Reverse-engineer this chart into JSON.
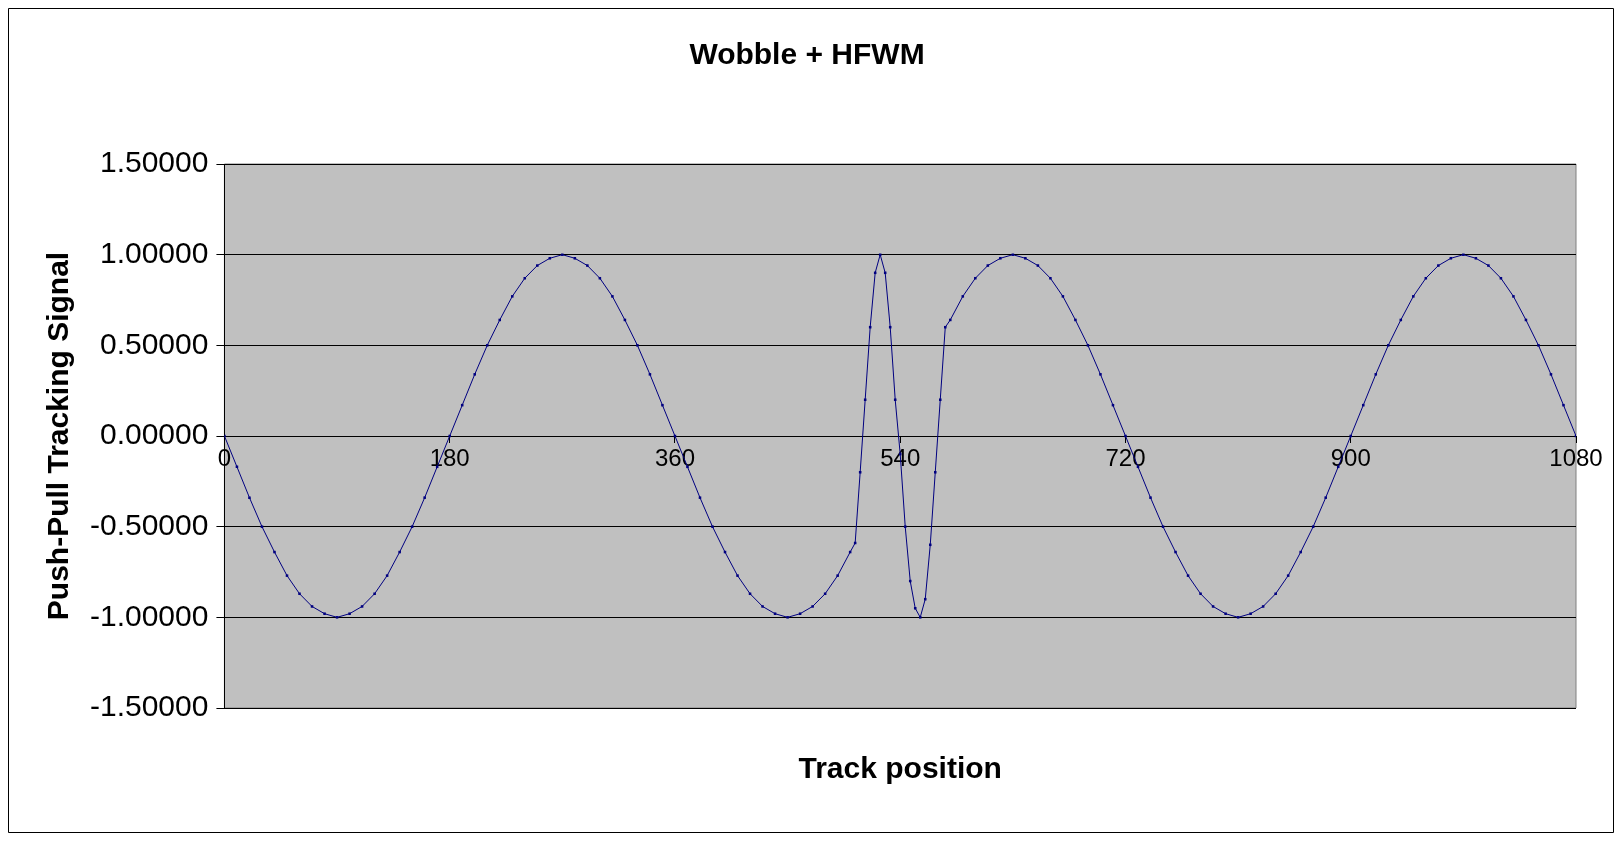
{
  "chart_data": {
    "type": "line",
    "title": "Wobble + HFWM",
    "xlabel": "Track position",
    "ylabel": "Push-Pull Tracking Signal",
    "x": [
      0,
      10,
      20,
      30,
      40,
      50,
      60,
      70,
      80,
      90,
      100,
      110,
      120,
      130,
      140,
      150,
      160,
      170,
      180,
      190,
      200,
      210,
      220,
      230,
      240,
      250,
      260,
      270,
      280,
      290,
      300,
      310,
      320,
      330,
      340,
      350,
      360,
      370,
      380,
      390,
      400,
      410,
      420,
      430,
      440,
      450,
      460,
      470,
      480,
      490,
      500,
      504,
      508,
      512,
      516,
      520,
      524,
      528,
      532,
      536,
      540,
      544,
      548,
      552,
      556,
      560,
      564,
      568,
      572,
      576,
      580,
      590,
      600,
      610,
      620,
      630,
      640,
      650,
      660,
      670,
      680,
      690,
      700,
      710,
      720,
      730,
      740,
      750,
      760,
      770,
      780,
      790,
      800,
      810,
      820,
      830,
      840,
      850,
      860,
      870,
      880,
      890,
      900,
      910,
      920,
      930,
      940,
      950,
      960,
      970,
      980,
      990,
      1000,
      1010,
      1020,
      1030,
      1040,
      1050,
      1060,
      1070,
      1080
    ],
    "series": [
      {
        "color": "#000080",
        "values": [
          0,
          -0.17,
          -0.34,
          -0.5,
          -0.64,
          -0.77,
          -0.87,
          -0.94,
          -0.98,
          -1,
          -0.98,
          -0.94,
          -0.87,
          -0.77,
          -0.64,
          -0.5,
          -0.34,
          -0.17,
          0,
          0.17,
          0.34,
          0.5,
          0.64,
          0.77,
          0.87,
          0.94,
          0.98,
          1,
          0.98,
          0.94,
          0.87,
          0.77,
          0.64,
          0.5,
          0.34,
          0.17,
          0,
          -0.17,
          -0.34,
          -0.5,
          -0.64,
          -0.77,
          -0.87,
          -0.94,
          -0.98,
          -1,
          -0.98,
          -0.94,
          -0.87,
          -0.77,
          -0.64,
          -0.59,
          -0.2,
          0.2,
          0.6,
          0.9,
          1,
          0.9,
          0.6,
          0.2,
          -0.1,
          -0.5,
          -0.8,
          -0.95,
          -1,
          -0.9,
          -0.6,
          -0.2,
          0.2,
          0.6,
          0.64,
          0.77,
          0.87,
          0.94,
          0.98,
          1,
          0.98,
          0.94,
          0.87,
          0.77,
          0.64,
          0.5,
          0.34,
          0.17,
          0,
          -0.17,
          -0.34,
          -0.5,
          -0.64,
          -0.77,
          -0.87,
          -0.94,
          -0.98,
          -1,
          -0.98,
          -0.94,
          -0.87,
          -0.77,
          -0.64,
          -0.5,
          -0.34,
          -0.17,
          0,
          0.17,
          0.34,
          0.5,
          0.64,
          0.77,
          0.87,
          0.94,
          0.98,
          1,
          0.98,
          0.94,
          0.87,
          0.77,
          0.64,
          0.5,
          0.34,
          0.17,
          0
        ]
      }
    ],
    "xlim": [
      0,
      1080
    ],
    "xticks": [
      0,
      180,
      360,
      540,
      720,
      900,
      1080
    ],
    "ylim": [
      -1.5,
      1.5
    ],
    "yticks": [
      {
        "value": -1.5,
        "label": "-1.50000"
      },
      {
        "value": -1,
        "label": "-1.00000"
      },
      {
        "value": -0.5,
        "label": "-0.50000"
      },
      {
        "value": 0,
        "label": "0.00000"
      },
      {
        "value": 0.5,
        "label": "0.50000"
      },
      {
        "value": 1,
        "label": "1.00000"
      },
      {
        "value": 1.5,
        "label": "1.50000"
      }
    ],
    "grid": "y",
    "legend": false,
    "marker": "square",
    "line_style": "solid"
  }
}
